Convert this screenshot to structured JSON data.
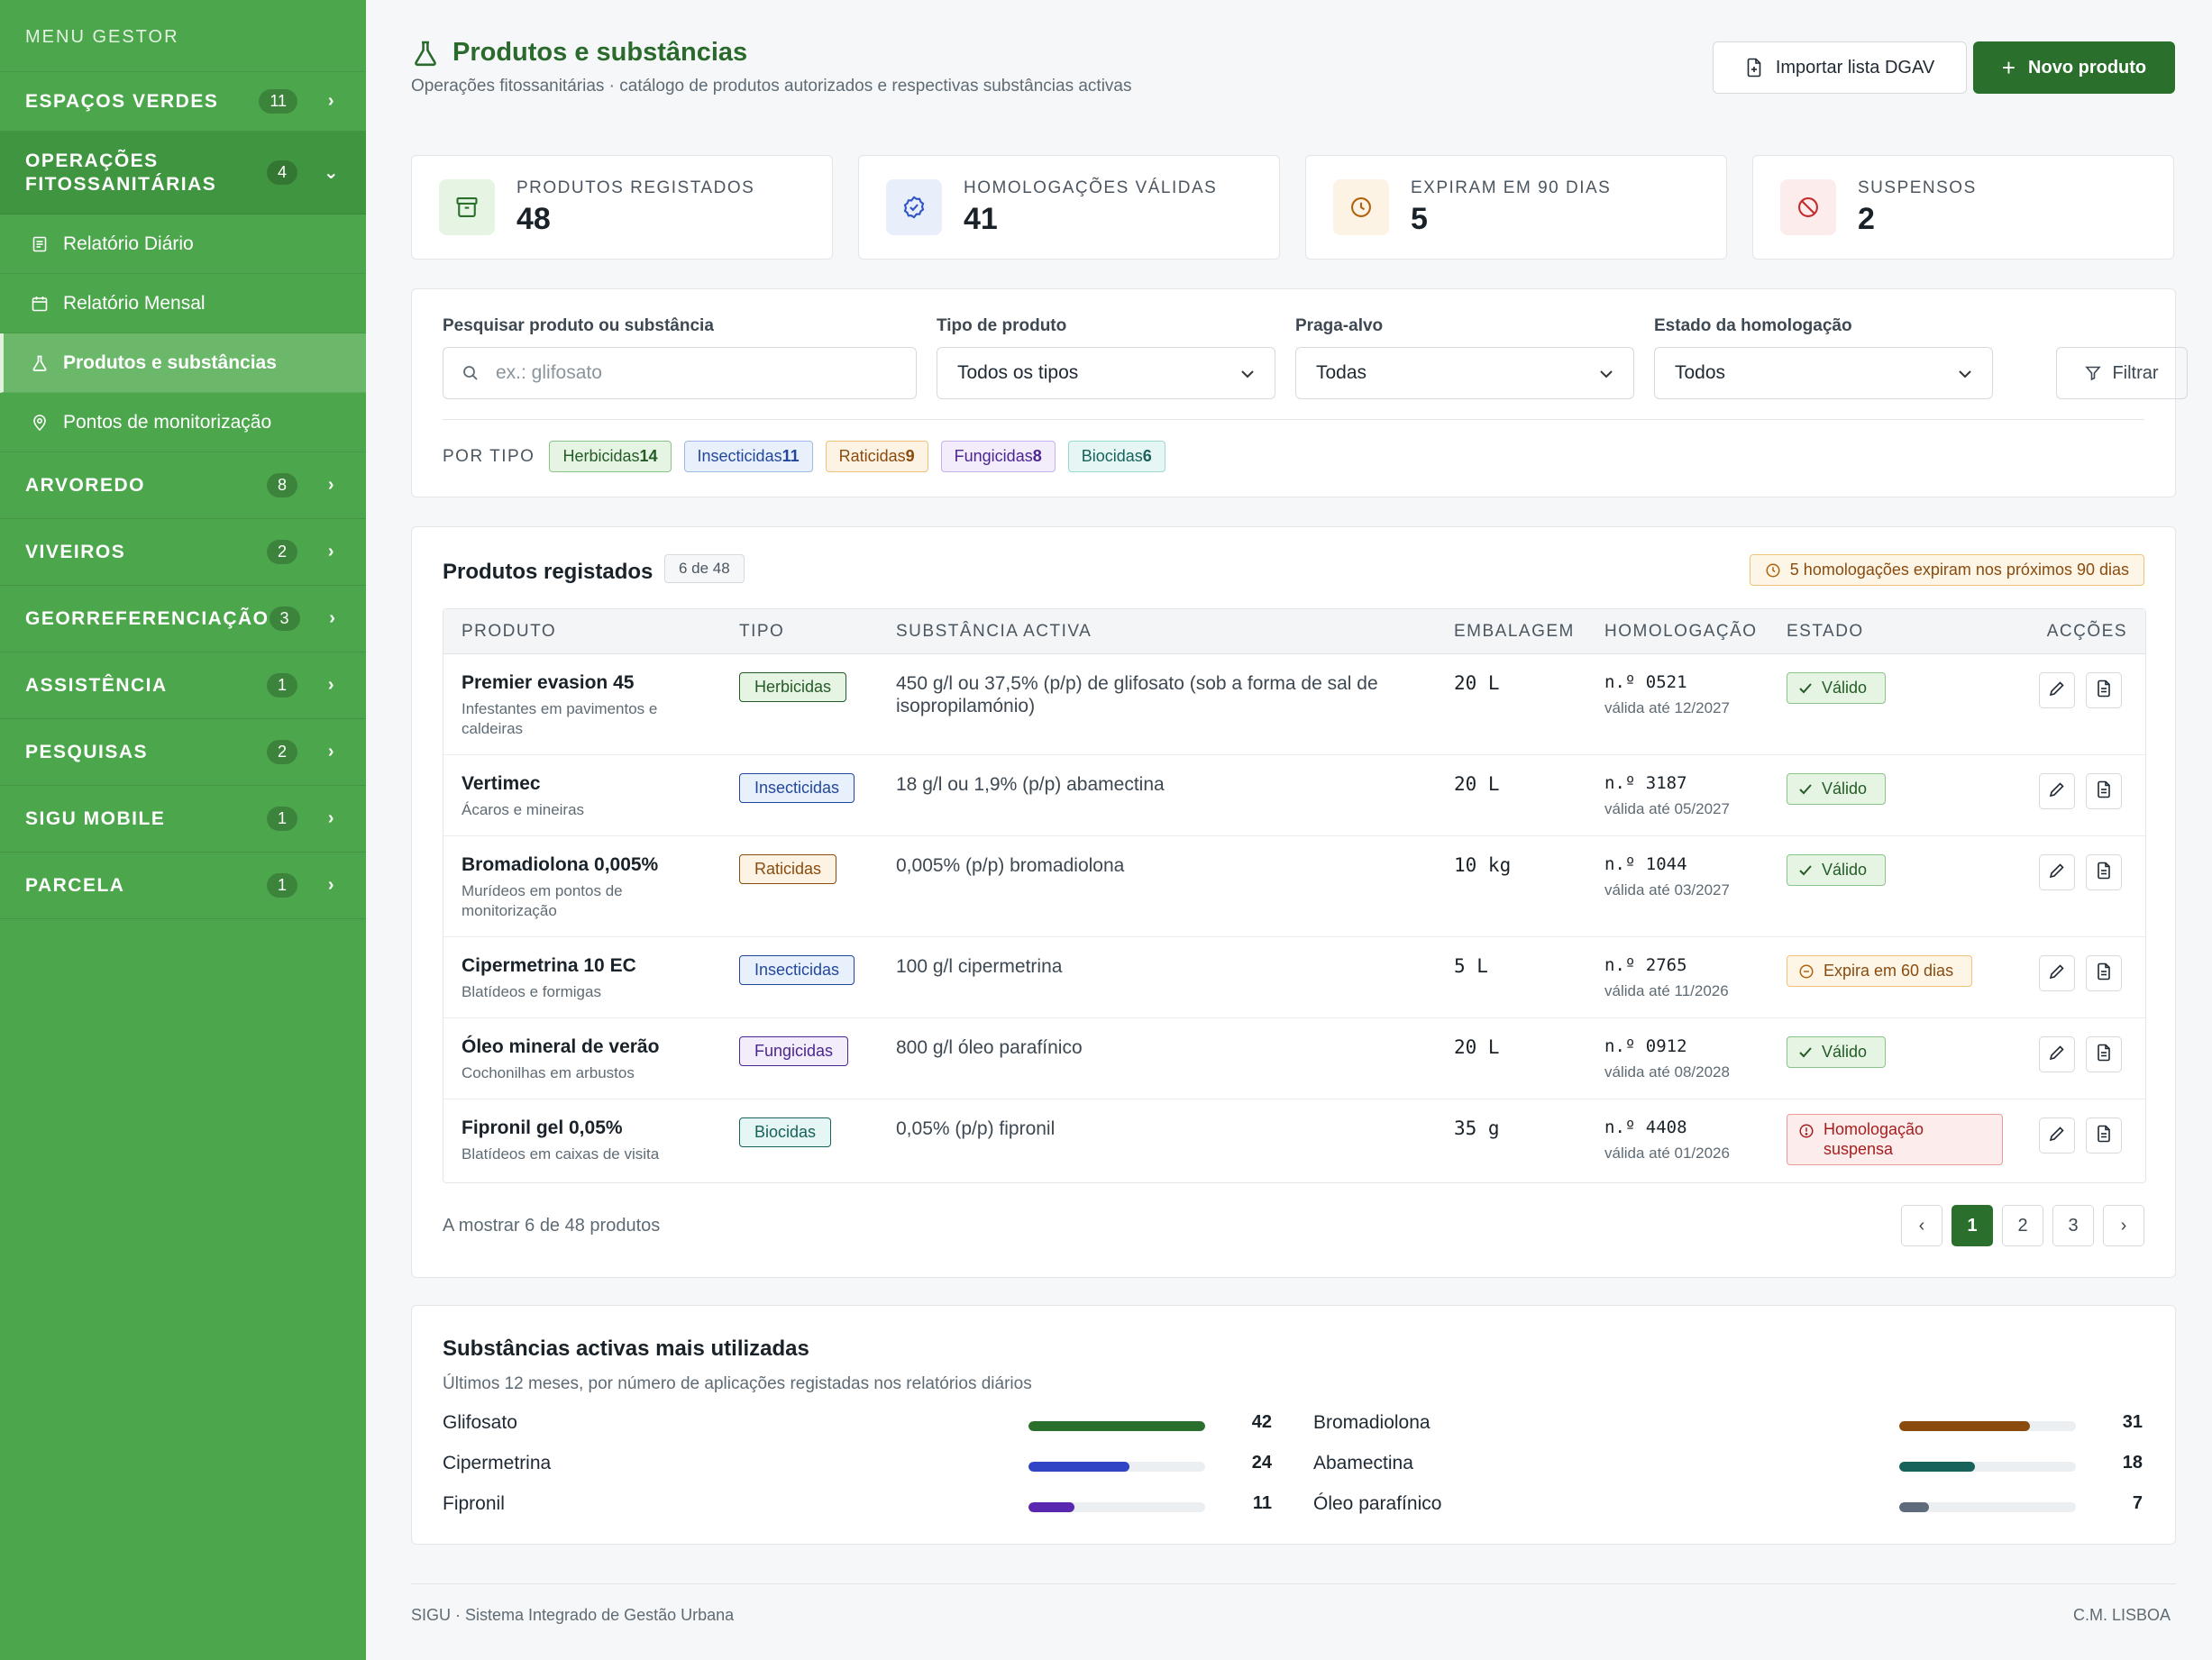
{
  "sidebar": {
    "header": "MENU GESTOR",
    "sections": [
      {
        "label": "ESPAÇOS VERDES",
        "count": "11"
      },
      {
        "label": "OPERAÇÕES FITOSSANITÁRIAS",
        "count": "4"
      },
      {
        "label": "ARVOREDO",
        "count": "8"
      },
      {
        "label": "VIVEIROS",
        "count": "2"
      },
      {
        "label": "GEORREFERENCIAÇÃO",
        "count": "3"
      },
      {
        "label": "ASSISTÊNCIA",
        "count": "1"
      },
      {
        "label": "PESQUISAS",
        "count": "2"
      },
      {
        "label": "SIGU MOBILE",
        "count": "1"
      },
      {
        "label": "PARCELA",
        "count": "1"
      }
    ],
    "subitems": [
      {
        "label": "Relatório Diário",
        "icon": "report-icon"
      },
      {
        "label": "Relatório Mensal",
        "icon": "calendar-icon"
      },
      {
        "label": "Produtos e substâncias",
        "icon": "flask-icon",
        "active": true
      },
      {
        "label": "Pontos de monitorização",
        "icon": "map-pin-icon"
      }
    ]
  },
  "header": {
    "title": "Produtos e substâncias",
    "subtitle": "Operações fitossanitárias · catálogo de produtos autorizados e respectivas substâncias activas",
    "import_label": "Importar lista DGAV",
    "new_label": "Novo produto"
  },
  "kpis": [
    {
      "label": "PRODUTOS REGISTADOS",
      "value": "48",
      "icon": "archive-icon",
      "color": "#2a6f2c"
    },
    {
      "label": "HOMOLOGAÇÕES VÁLIDAS",
      "value": "41",
      "icon": "badge-check-icon",
      "color": "#2f54c5"
    },
    {
      "label": "EXPIRAM EM 90 DIAS",
      "value": "5",
      "icon": "clock-icon",
      "color": "#b0620d"
    },
    {
      "label": "SUSPENSOS",
      "value": "2",
      "icon": "ban-icon",
      "color": "#c42b2b"
    }
  ],
  "filters": {
    "search_label": "Pesquisar produto ou substância",
    "search_placeholder": "ex.: glifosato",
    "type_label": "Tipo de produto",
    "type_value": "Todos os tipos",
    "pest_label": "Praga-alvo",
    "pest_value": "Todas",
    "status_label": "Estado da homologação",
    "status_value": "Todos",
    "filter_button": "Filtrar",
    "bytype_label": "POR TIPO",
    "chips": [
      {
        "label": "Herbicidas",
        "count": "14"
      },
      {
        "label": "Insecticidas",
        "count": "11"
      },
      {
        "label": "Raticidas",
        "count": "9"
      },
      {
        "label": "Fungicidas",
        "count": "8"
      },
      {
        "label": "Biocidas",
        "count": "6"
      }
    ]
  },
  "table": {
    "title": "Produtos registados",
    "count_badge": "6 de 48",
    "alert": "5 homologações expiram nos próximos 90 dias",
    "columns": [
      "PRODUTO",
      "TIPO",
      "SUBSTÂNCIA ACTIVA",
      "EMBALAGEM",
      "HOMOLOGAÇÃO",
      "ESTADO",
      "ACÇÕES"
    ],
    "rows": [
      {
        "name": "Premier evasion 45",
        "desc": "Infestantes em pavimentos e caldeiras",
        "type": "Herbicidas",
        "substance": "450 g/l ou 37,5% (p/p) de glifosato (sob a forma de sal de isopropilamónio)",
        "pack": "20 L",
        "hom_no": "n.º 0521",
        "hom_valid": "válida até 12/2027",
        "status": "Válido"
      },
      {
        "name": "Vertimec",
        "desc": "Ácaros e mineiras",
        "type": "Insecticidas",
        "substance": "18 g/l ou 1,9% (p/p) abamectina",
        "pack": "20 L",
        "hom_no": "n.º 3187",
        "hom_valid": "válida até 05/2027",
        "status": "Válido"
      },
      {
        "name": "Bromadiolona 0,005%",
        "desc": "Murídeos em pontos de monitorização",
        "type": "Raticidas",
        "substance": "0,005% (p/p) bromadiolona",
        "pack": "10 kg",
        "hom_no": "n.º 1044",
        "hom_valid": "válida até 03/2027",
        "status": "Válido"
      },
      {
        "name": "Cipermetrina 10 EC",
        "desc": "Blatídeos e formigas",
        "type": "Insecticidas",
        "substance": "100 g/l cipermetrina",
        "pack": "5 L",
        "hom_no": "n.º 2765",
        "hom_valid": "válida até 11/2026",
        "status": "Expira em 60 dias"
      },
      {
        "name": "Óleo mineral de verão",
        "desc": "Cochonilhas em arbustos",
        "type": "Fungicidas",
        "substance": "800 g/l óleo parafínico",
        "pack": "20 L",
        "hom_no": "n.º 0912",
        "hom_valid": "válida até 08/2028",
        "status": "Válido"
      },
      {
        "name": "Fipronil gel 0,05%",
        "desc": "Blatídeos em caixas de visita",
        "type": "Biocidas",
        "substance": "0,05% (p/p) fipronil",
        "pack": "35 g",
        "hom_no": "n.º 4408",
        "hom_valid": "válida até 01/2026",
        "status": "Homologação suspensa"
      }
    ],
    "footer": "A mostrar 6 de 48 produtos",
    "pages": [
      "1",
      "2",
      "3"
    ],
    "current_page": "1"
  },
  "substances": {
    "title": "Substâncias activas mais utilizadas",
    "subtitle": "Últimos 12 meses, por número de aplicações registadas nos relatórios diários",
    "max": 42,
    "items": [
      {
        "name": "Glifosato",
        "value": 42,
        "color": "#2a6f2c"
      },
      {
        "name": "Bromadiolona",
        "value": 31,
        "color": "#8a4b0e"
      },
      {
        "name": "Cipermetrina",
        "value": 24,
        "color": "#2f45c5"
      },
      {
        "name": "Abamectina",
        "value": 18,
        "color": "#17625a"
      },
      {
        "name": "Fipronil",
        "value": 11,
        "color": "#5a27b0"
      },
      {
        "name": "Óleo parafínico",
        "value": 7,
        "color": "#5d6b7a"
      }
    ]
  },
  "footer": {
    "left": "SIGU · Sistema Integrado de Gestão Urbana",
    "right": "C.M. LISBOA"
  }
}
